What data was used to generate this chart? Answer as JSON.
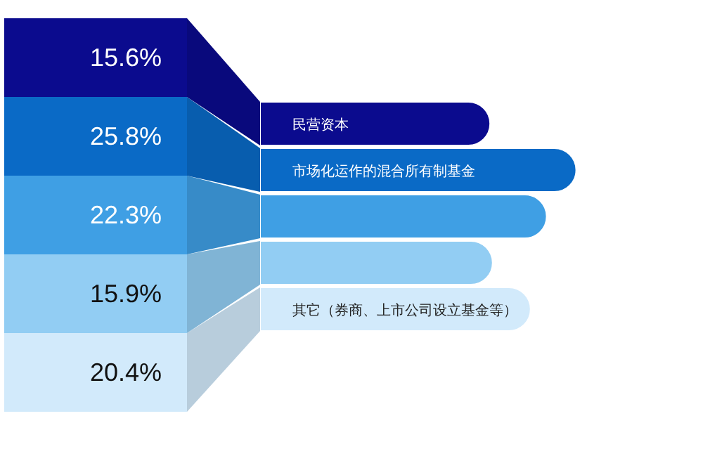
{
  "chart_data": {
    "type": "other",
    "categories": [
      "民营资本",
      "市场化运作的混合所有制基金",
      null,
      null,
      "其它（券商、上市公司设立基金等）"
    ],
    "values": [
      15.6,
      25.8,
      22.3,
      15.9,
      20.4
    ],
    "value_labels": [
      "15.6%",
      "25.8%",
      "22.3%",
      "15.9%",
      "20.4%"
    ],
    "colors": [
      "#0b0b8e",
      "#0a6ac6",
      "#3f9fe4",
      "#92cdf3",
      "#d2eafb"
    ]
  }
}
